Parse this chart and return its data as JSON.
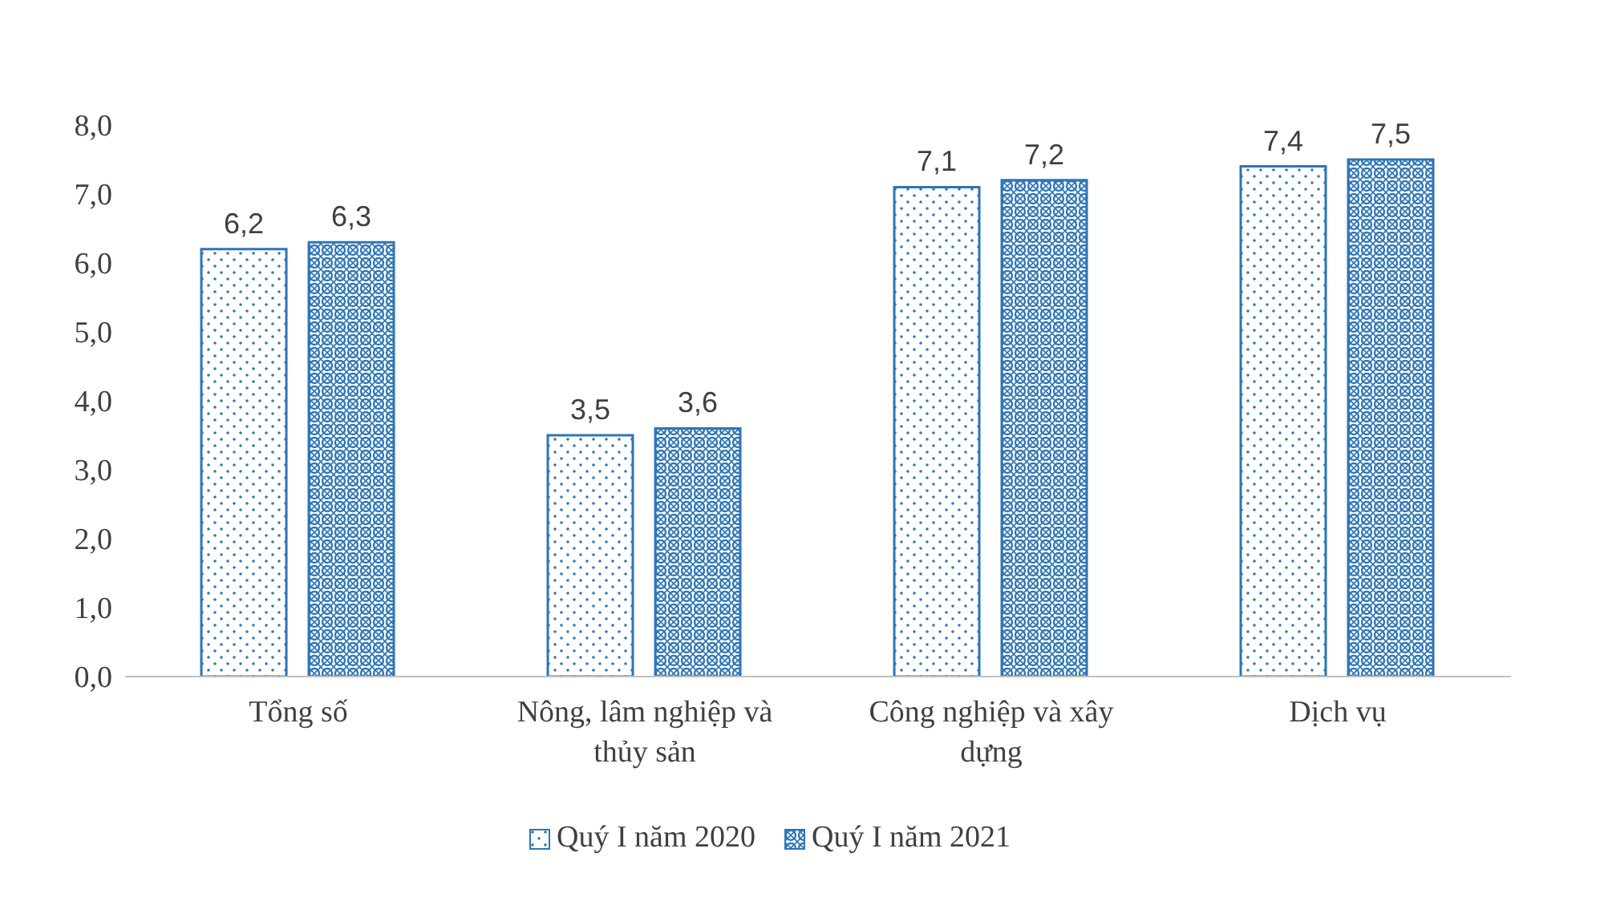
{
  "chart_data": {
    "type": "bar",
    "categories": [
      "Tổng số",
      "Nông, lâm nghiệp và thủy sản",
      "Công nghiệp và xây dựng",
      "Dịch vụ"
    ],
    "series": [
      {
        "name": "Quý I năm 2020",
        "color": "#2e75b6",
        "values": [
          6.2,
          3.5,
          7.1,
          7.4
        ],
        "value_labels": [
          "6,2",
          "3,5",
          "7,1",
          "7,4"
        ]
      },
      {
        "name": "Quý I năm 2021",
        "color": "#2e75b6",
        "values": [
          6.3,
          3.6,
          7.2,
          7.5
        ],
        "value_labels": [
          "6,3",
          "3,6",
          "7,2",
          "7,5"
        ]
      }
    ],
    "ylim": [
      0,
      8
    ],
    "yticks": [
      {
        "value": 0,
        "label": "0,0"
      },
      {
        "value": 1,
        "label": "1,0"
      },
      {
        "value": 2,
        "label": "2,0"
      },
      {
        "value": 3,
        "label": "3,0"
      },
      {
        "value": 4,
        "label": "4,0"
      },
      {
        "value": 5,
        "label": "5,0"
      },
      {
        "value": 6,
        "label": "6,0"
      },
      {
        "value": 7,
        "label": "7,0"
      },
      {
        "value": 8,
        "label": "8,0"
      }
    ],
    "legend": "bottom"
  }
}
